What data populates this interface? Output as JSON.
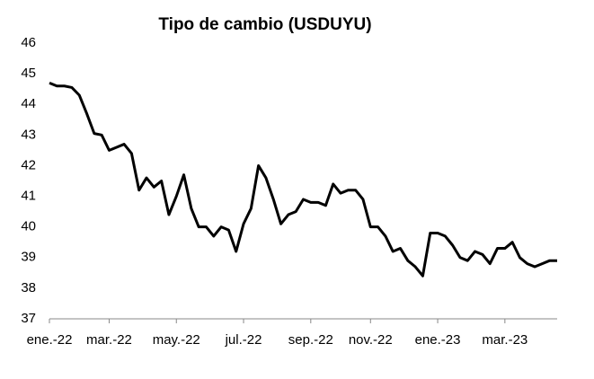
{
  "chart_data": {
    "type": "line",
    "title": "Tipo de cambio (USDUYU)",
    "categories": [
      "ene.-22",
      null,
      null,
      null,
      null,
      null,
      null,
      null,
      "mar.-22",
      null,
      null,
      null,
      null,
      null,
      null,
      null,
      null,
      "may.-22",
      null,
      null,
      null,
      null,
      null,
      null,
      null,
      null,
      "jul.-22",
      null,
      null,
      null,
      null,
      null,
      null,
      null,
      null,
      "sep.-22",
      null,
      null,
      null,
      null,
      null,
      null,
      null,
      "nov.-22",
      null,
      null,
      null,
      null,
      null,
      null,
      null,
      null,
      "ene.-23",
      null,
      null,
      null,
      null,
      null,
      null,
      null,
      null,
      "mar.-23",
      null,
      null,
      null,
      null,
      null,
      null,
      null
    ],
    "values": [
      44.7,
      44.6,
      44.6,
      44.55,
      44.3,
      43.7,
      43.05,
      43.0,
      42.5,
      42.6,
      42.7,
      42.4,
      41.2,
      41.6,
      41.3,
      41.5,
      40.4,
      41.0,
      41.7,
      40.6,
      40.0,
      40.0,
      39.7,
      40.0,
      39.9,
      39.2,
      40.1,
      40.6,
      42.0,
      41.6,
      40.9,
      40.1,
      40.4,
      40.5,
      40.9,
      40.8,
      40.8,
      40.7,
      41.4,
      41.1,
      41.2,
      41.2,
      40.9,
      40.0,
      40.0,
      39.7,
      39.2,
      39.3,
      38.9,
      38.7,
      38.4,
      39.8,
      39.8,
      39.7,
      39.4,
      39.0,
      38.9,
      39.2,
      39.1,
      38.8,
      39.3,
      39.3,
      39.5,
      39.0,
      38.8,
      38.7,
      38.8,
      38.9,
      38.9
    ],
    "color": "#000000",
    "ylim": [
      37,
      46
    ],
    "yticks": [
      37,
      38,
      39,
      40,
      41,
      42,
      43,
      44,
      45,
      46
    ],
    "grid": false
  }
}
